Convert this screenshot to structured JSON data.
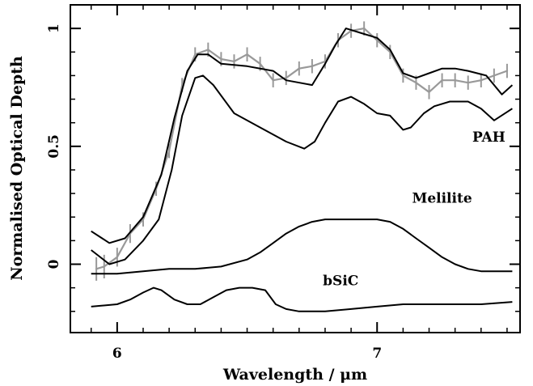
{
  "chart_data": {
    "type": "line",
    "title": "",
    "xlabel": "Wavelength / μm",
    "ylabel": "Normalised Optical Depth",
    "xlim": [
      5.82,
      7.55
    ],
    "ylim": [
      -0.29,
      1.1
    ],
    "grid": false,
    "x_ticks": [
      {
        "value": 6,
        "label": "6"
      },
      {
        "value": 7,
        "label": "7"
      }
    ],
    "y_ticks": [
      {
        "value": 0,
        "label": "0"
      },
      {
        "value": 0.5,
        "label": "0.5"
      },
      {
        "value": 1,
        "label": "1"
      }
    ],
    "annotations": [
      {
        "text": "PAH",
        "x": 7.43,
        "y": 0.52
      },
      {
        "text": "Melilite",
        "x": 7.25,
        "y": 0.26
      },
      {
        "text": "bSiC",
        "x": 6.86,
        "y": -0.09
      }
    ],
    "series": [
      {
        "name": "",
        "color": "#999999",
        "errorbars": true,
        "x": [
          5.92,
          5.95,
          6.0,
          6.05,
          6.1,
          6.15,
          6.2,
          6.25,
          6.3,
          6.35,
          6.4,
          6.45,
          6.5,
          6.55,
          6.6,
          6.65,
          6.7,
          6.75,
          6.8,
          6.85,
          6.9,
          6.95,
          7.0,
          7.05,
          7.1,
          7.15,
          7.2,
          7.25,
          7.3,
          7.35,
          7.4,
          7.45,
          7.5
        ],
        "y": [
          -0.02,
          -0.01,
          0.03,
          0.13,
          0.19,
          0.32,
          0.48,
          0.76,
          0.89,
          0.91,
          0.87,
          0.86,
          0.89,
          0.85,
          0.78,
          0.79,
          0.83,
          0.84,
          0.86,
          0.95,
          0.99,
          1.0,
          0.95,
          0.9,
          0.8,
          0.77,
          0.73,
          0.78,
          0.78,
          0.77,
          0.78,
          0.8,
          0.82
        ],
        "err": [
          0.05,
          0.05,
          0.04,
          0.04,
          0.03,
          0.03,
          0.03,
          0.03,
          0.03,
          0.03,
          0.03,
          0.03,
          0.03,
          0.03,
          0.03,
          0.03,
          0.03,
          0.03,
          0.03,
          0.03,
          0.03,
          0.03,
          0.03,
          0.03,
          0.03,
          0.03,
          0.03,
          0.03,
          0.03,
          0.03,
          0.03,
          0.03,
          0.03
        ]
      },
      {
        "name": "",
        "color": "#000000",
        "x": [
          5.9,
          5.97,
          6.03,
          6.1,
          6.17,
          6.22,
          6.27,
          6.31,
          6.35,
          6.4,
          6.5,
          6.6,
          6.65,
          6.75,
          6.8,
          6.84,
          6.88,
          6.94,
          7.0,
          7.05,
          7.1,
          7.15,
          7.2,
          7.25,
          7.3,
          7.35,
          7.42,
          7.48,
          7.52
        ],
        "y": [
          0.14,
          0.09,
          0.11,
          0.2,
          0.38,
          0.62,
          0.82,
          0.89,
          0.89,
          0.85,
          0.84,
          0.82,
          0.78,
          0.76,
          0.85,
          0.93,
          1.0,
          0.98,
          0.96,
          0.91,
          0.81,
          0.79,
          0.81,
          0.83,
          0.83,
          0.82,
          0.8,
          0.72,
          0.76
        ]
      },
      {
        "name": "PAH",
        "color": "#000000",
        "x": [
          5.9,
          5.97,
          6.03,
          6.1,
          6.16,
          6.21,
          6.25,
          6.3,
          6.33,
          6.37,
          6.45,
          6.55,
          6.65,
          6.72,
          6.76,
          6.8,
          6.85,
          6.9,
          6.95,
          7.0,
          7.05,
          7.1,
          7.13,
          7.18,
          7.22,
          7.28,
          7.35,
          7.4,
          7.45,
          7.52
        ],
        "y": [
          0.06,
          0.0,
          0.02,
          0.1,
          0.19,
          0.4,
          0.63,
          0.79,
          0.8,
          0.76,
          0.64,
          0.58,
          0.52,
          0.49,
          0.52,
          0.6,
          0.69,
          0.71,
          0.68,
          0.64,
          0.63,
          0.57,
          0.58,
          0.64,
          0.67,
          0.69,
          0.69,
          0.66,
          0.61,
          0.66
        ]
      },
      {
        "name": "Melilite",
        "color": "#000000",
        "x": [
          5.9,
          6.0,
          6.1,
          6.2,
          6.3,
          6.4,
          6.5,
          6.55,
          6.6,
          6.65,
          6.7,
          6.75,
          6.8,
          6.85,
          6.9,
          6.95,
          7.0,
          7.05,
          7.1,
          7.15,
          7.2,
          7.25,
          7.3,
          7.35,
          7.4,
          7.45,
          7.52
        ],
        "y": [
          -0.04,
          -0.04,
          -0.03,
          -0.02,
          -0.02,
          -0.01,
          0.02,
          0.05,
          0.09,
          0.13,
          0.16,
          0.18,
          0.19,
          0.19,
          0.19,
          0.19,
          0.19,
          0.18,
          0.15,
          0.11,
          0.07,
          0.03,
          0.0,
          -0.02,
          -0.03,
          -0.03,
          -0.03
        ]
      },
      {
        "name": "bSiC",
        "color": "#000000",
        "x": [
          5.9,
          6.0,
          6.05,
          6.1,
          6.14,
          6.17,
          6.22,
          6.27,
          6.32,
          6.37,
          6.42,
          6.47,
          6.52,
          6.57,
          6.61,
          6.65,
          6.7,
          6.8,
          6.9,
          7.0,
          7.1,
          7.2,
          7.3,
          7.4,
          7.52
        ],
        "y": [
          -0.18,
          -0.17,
          -0.15,
          -0.12,
          -0.1,
          -0.11,
          -0.15,
          -0.17,
          -0.17,
          -0.14,
          -0.11,
          -0.1,
          -0.1,
          -0.11,
          -0.17,
          -0.19,
          -0.2,
          -0.2,
          -0.19,
          -0.18,
          -0.17,
          -0.17,
          -0.17,
          -0.17,
          -0.16
        ]
      }
    ]
  }
}
